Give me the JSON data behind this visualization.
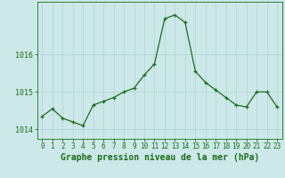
{
  "x": [
    0,
    1,
    2,
    3,
    4,
    5,
    6,
    7,
    8,
    9,
    10,
    11,
    12,
    13,
    14,
    15,
    16,
    17,
    18,
    19,
    20,
    21,
    22,
    23
  ],
  "y": [
    1014.35,
    1014.55,
    1014.3,
    1014.2,
    1014.1,
    1014.65,
    1014.75,
    1014.85,
    1015.0,
    1015.1,
    1015.45,
    1015.75,
    1016.95,
    1017.05,
    1016.85,
    1015.55,
    1015.25,
    1015.05,
    1014.85,
    1014.65,
    1014.6,
    1015.0,
    1015.0,
    1014.6
  ],
  "line_color": "#1a6e1a",
  "marker_color": "#1a6e1a",
  "bg_color": "#cce8e8",
  "grid_color": "#b0d4d4",
  "axis_label_color": "#1a6e1a",
  "tick_label_color": "#1a6e1a",
  "xlabel": "Graphe pression niveau de la mer (hPa)",
  "ylim": [
    1013.75,
    1017.4
  ],
  "yticks": [
    1014,
    1015,
    1016
  ],
  "xticks": [
    0,
    1,
    2,
    3,
    4,
    5,
    6,
    7,
    8,
    9,
    10,
    11,
    12,
    13,
    14,
    15,
    16,
    17,
    18,
    19,
    20,
    21,
    22,
    23
  ],
  "xlabel_fontsize": 7.0,
  "tick_fontsize": 5.5,
  "ytick_fontsize": 6.0
}
